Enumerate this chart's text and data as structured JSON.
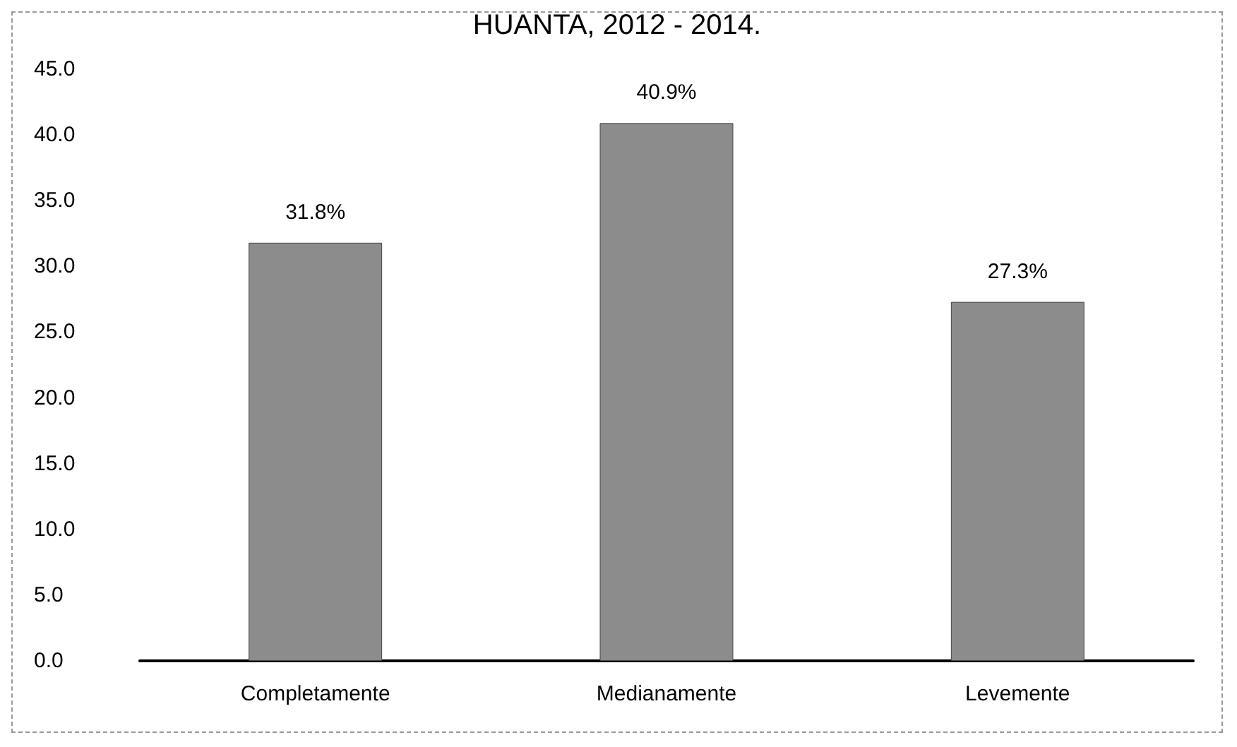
{
  "chart_data": {
    "type": "bar",
    "title": "HUANTA, 2012 - 2014.",
    "categories": [
      "Completamente",
      "Medianamente",
      "Levemente"
    ],
    "values": [
      31.8,
      40.9,
      27.3
    ],
    "value_labels": [
      "31.8%",
      "40.9%",
      "27.3%"
    ],
    "color": "#8c8c8c",
    "ylim": [
      0,
      45
    ],
    "yticks": [
      {
        "value": 0,
        "label": "0.0"
      },
      {
        "value": 5,
        "label": "5.0"
      },
      {
        "value": 10,
        "label": "10.0"
      },
      {
        "value": 15,
        "label": "15.0"
      },
      {
        "value": 20,
        "label": "20.0"
      },
      {
        "value": 25,
        "label": "25.0"
      },
      {
        "value": 30,
        "label": "30.0"
      },
      {
        "value": 35,
        "label": "35.0"
      },
      {
        "value": 40,
        "label": "40.0"
      },
      {
        "value": 45,
        "label": "45.0"
      }
    ],
    "grid": false
  }
}
